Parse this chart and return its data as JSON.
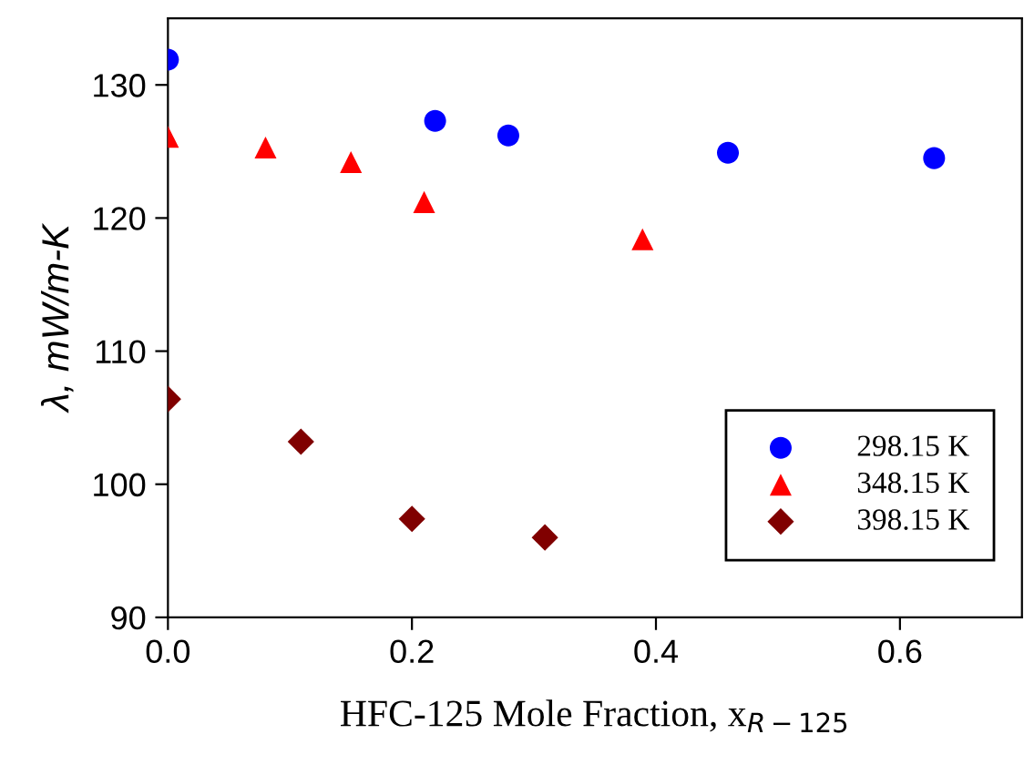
{
  "chart_data": {
    "type": "scatter",
    "xlabel": "HFC-125 Mole Fraction, x$_{R−125}$",
    "ylabel": "λ, mW/m-K",
    "xlim": [
      0,
      0.7
    ],
    "xticks": [
      {
        "value": 0,
        "label": "0.0"
      },
      0.2,
      0.4,
      0.6
    ],
    "ylim": [
      90,
      135
    ],
    "yticks": [
      90,
      100,
      110,
      120,
      130
    ],
    "grid": false,
    "legend": "bottom right",
    "series": [
      {
        "name": "298.15 K",
        "color": "#0000ff",
        "marker": "circle",
        "x": [
          0.0,
          0.219,
          0.279,
          0.459,
          0.628
        ],
        "values": [
          131.9,
          127.3,
          126.2,
          124.9,
          124.5
        ]
      },
      {
        "name": "348.15 K",
        "color": "#ff0000",
        "marker": "triangle",
        "x": [
          0.0,
          0.08,
          0.15,
          0.21,
          0.389
        ],
        "values": [
          126.1,
          125.3,
          124.2,
          121.2,
          118.4
        ]
      },
      {
        "name": "398.15 K",
        "color": "#800000",
        "marker": "diamond",
        "x": [
          0.0,
          0.109,
          0.2,
          0.309
        ],
        "values": [
          106.4,
          103.2,
          97.4,
          96.0
        ]
      }
    ]
  }
}
